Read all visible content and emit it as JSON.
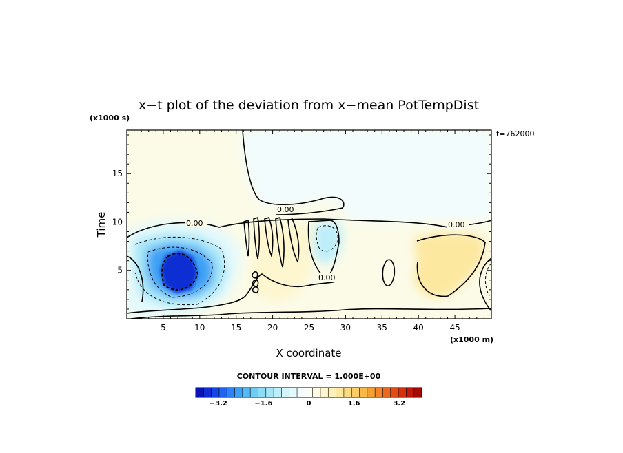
{
  "chart_data": {
    "type": "heatmap",
    "title": "x−t plot of the deviation from x−mean PotTempDist",
    "xlabel": "X coordinate",
    "ylabel": "Time",
    "x_unit": "(x1000 m)",
    "y_unit": "(x1000 s)",
    "time_annotation": "t=762000",
    "x_ticks": [
      "5",
      "10",
      "15",
      "20",
      "25",
      "30",
      "35",
      "40",
      "45"
    ],
    "y_ticks": [
      "5",
      "10",
      "15"
    ],
    "xlim": [
      0,
      50
    ],
    "ylim": [
      0,
      19.5
    ],
    "grid": false,
    "contour_interval_text": "CONTOUR INTERVAL = 1.000E+00",
    "contour_labels": [
      "0.00",
      "0.00",
      "0.00",
      "0.00"
    ],
    "colorbar": {
      "range": [
        -4,
        4
      ],
      "ticks": [
        "−3.2",
        "−1.6",
        "0",
        "1.6",
        "3.2"
      ],
      "colors": [
        "#0a14b4",
        "#0f2dd2",
        "#1446e6",
        "#1e64f0",
        "#2d82f5",
        "#3ca0f5",
        "#55b9f5",
        "#6ecdf5",
        "#8cdcf5",
        "#a5e6f8",
        "#bdeefa",
        "#d2f5fb",
        "#e4f9fc",
        "#f2fcfd",
        "#fbfdf4",
        "#fdfbe3",
        "#fdf6cf",
        "#fdf0b9",
        "#fde8a0",
        "#fcdc82",
        "#fbcd64",
        "#f9b946",
        "#f6a032",
        "#f28528",
        "#ec6a1e",
        "#e24c14",
        "#d3300c",
        "#c21806",
        "#a30a02"
      ]
    },
    "regions": [
      {
        "name": "cold-core",
        "value": -3.5
      },
      {
        "name": "cold-ring-1",
        "value": -2.5
      },
      {
        "name": "cold-ring-2",
        "value": -1.5
      },
      {
        "name": "cold-outer",
        "value": -0.6
      },
      {
        "name": "upper-cold-band",
        "value": -0.35
      },
      {
        "name": "cold-pocket",
        "value": -1.2
      },
      {
        "name": "warm-left",
        "value": 0.9
      },
      {
        "name": "warm-right",
        "value": 1.1
      },
      {
        "name": "warm-mid",
        "value": 0.6
      }
    ]
  }
}
